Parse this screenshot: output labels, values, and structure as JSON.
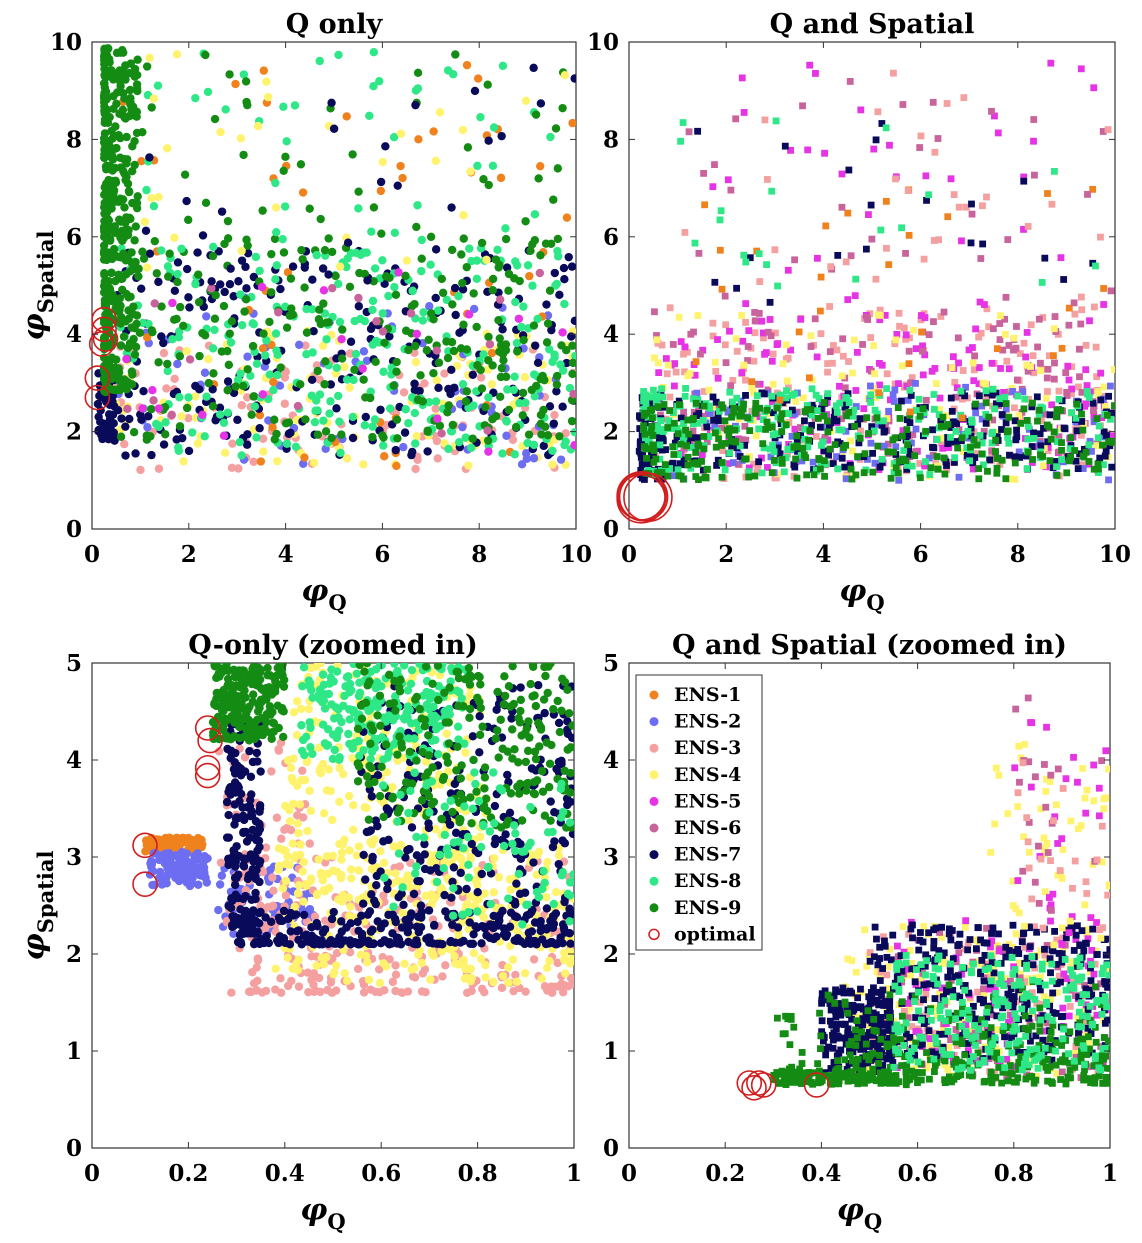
{
  "figure": {
    "legend": [
      {
        "label": "ENS-1",
        "color": "#f0821e",
        "marker": "dot"
      },
      {
        "label": "ENS-2",
        "color": "#6d6df2",
        "marker": "dot"
      },
      {
        "label": "ENS-3",
        "color": "#f5a0a0",
        "marker": "dot"
      },
      {
        "label": "ENS-4",
        "color": "#fff36e",
        "marker": "dot"
      },
      {
        "label": "ENS-5",
        "color": "#e633e6",
        "marker": "dot"
      },
      {
        "label": "ENS-6",
        "color": "#c8649b",
        "marker": "dot"
      },
      {
        "label": "ENS-7",
        "color": "#0a0a5a",
        "marker": "dot"
      },
      {
        "label": "ENS-8",
        "color": "#2ee888",
        "marker": "dot"
      },
      {
        "label": "ENS-9",
        "color": "#148c14",
        "marker": "dot"
      },
      {
        "label": "optimal",
        "color": "#d21e1e",
        "marker": "open-circle"
      }
    ]
  },
  "chart_data": [
    {
      "type": "scatter",
      "title": "Q only",
      "xlabel": "φ",
      "xlabel_sub": "Q",
      "ylabel": "φ",
      "ylabel_sub": "Spatial",
      "xlim": [
        0,
        10
      ],
      "ylim": [
        0,
        10
      ],
      "xticks": [
        "0",
        "2",
        "4",
        "6",
        "8",
        "10"
      ],
      "yticks": [
        "0",
        "2",
        "4",
        "6",
        "8",
        "10"
      ],
      "marker": "circle",
      "optimal": [
        [
          0.25,
          4.3
        ],
        [
          0.25,
          4.1
        ],
        [
          0.28,
          3.9
        ],
        [
          0.2,
          3.8
        ],
        [
          0.11,
          3.1
        ],
        [
          0.11,
          2.7
        ]
      ]
    },
    {
      "type": "scatter",
      "title": "Q and Spatial",
      "xlabel": "φ",
      "xlabel_sub": "Q",
      "ylabel": "",
      "ylabel_sub": "",
      "xlim": [
        0,
        10
      ],
      "ylim": [
        0,
        10
      ],
      "xticks": [
        "0",
        "2",
        "4",
        "6",
        "8",
        "10"
      ],
      "yticks": [
        "0",
        "2",
        "4",
        "6",
        "8",
        "10"
      ],
      "marker": "square",
      "optimal": [
        [
          0.25,
          0.68
        ],
        [
          0.27,
          0.68
        ],
        [
          0.3,
          0.66
        ],
        [
          0.25,
          0.62
        ],
        [
          0.39,
          0.65
        ]
      ]
    },
    {
      "type": "scatter",
      "title": "Q-only (zoomed in)",
      "xlabel": "φ",
      "xlabel_sub": "Q",
      "ylabel": "φ",
      "ylabel_sub": "Spatial",
      "xlim": [
        0,
        1
      ],
      "ylim": [
        0,
        5
      ],
      "xticks": [
        "0",
        "0.2",
        "0.4",
        "0.6",
        "0.8",
        "1"
      ],
      "yticks": [
        "0",
        "1",
        "2",
        "3",
        "4",
        "5"
      ],
      "marker": "circle",
      "optimal": [
        [
          0.24,
          4.33
        ],
        [
          0.245,
          4.2
        ],
        [
          0.24,
          3.92
        ],
        [
          0.24,
          3.84
        ],
        [
          0.11,
          3.12
        ],
        [
          0.11,
          2.72
        ]
      ]
    },
    {
      "type": "scatter",
      "title": "Q and Spatial  (zoomed in)",
      "xlabel": "φ",
      "xlabel_sub": "Q",
      "ylabel": "",
      "ylabel_sub": "",
      "xlim": [
        0,
        1
      ],
      "ylim": [
        0,
        5
      ],
      "xticks": [
        "0",
        "0.2",
        "0.4",
        "0.6",
        "0.8",
        "1"
      ],
      "yticks": [
        "0",
        "1",
        "2",
        "3",
        "4",
        "5"
      ],
      "marker": "square",
      "legend_position": "top-left",
      "optimal": [
        [
          0.25,
          0.67
        ],
        [
          0.27,
          0.67
        ],
        [
          0.28,
          0.65
        ],
        [
          0.26,
          0.62
        ],
        [
          0.39,
          0.65
        ]
      ]
    }
  ]
}
